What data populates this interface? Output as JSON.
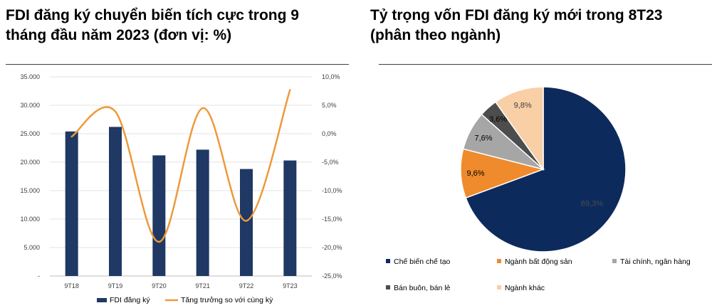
{
  "left": {
    "title_line1": "FDI đăng ký chuyển biến tích cực trong 9",
    "title_line2": "tháng đầu năm 2023 (đơn vị: %)"
  },
  "right": {
    "title_line1": "Tỷ trọng vốn FDI đăng ký mới trong 8T23",
    "title_line2": "(phân theo ngành)"
  },
  "chart_data": [
    {
      "type": "bar",
      "categories": [
        "9T18",
        "9T19",
        "9T20",
        "9T21",
        "9T22",
        "9T23"
      ],
      "series": [
        {
          "name": "FDI đăng ký",
          "type": "bar",
          "axis": "left",
          "color": "#1f3864",
          "values": [
            25400,
            26200,
            21200,
            22200,
            18800,
            20300
          ]
        },
        {
          "name": "Tăng trưởng so với cùng kỳ",
          "type": "line",
          "axis": "right",
          "color": "#ed9a3b",
          "values": [
            -0.5,
            3.9,
            -19.0,
            4.5,
            -15.3,
            7.7
          ]
        }
      ],
      "left_ticks": [
        "35.000",
        "30.000",
        "25.000",
        "20.000",
        "15.000",
        "10.000",
        "5.000",
        "-"
      ],
      "right_ticks": [
        "10,0%",
        "5,0%",
        "0,0%",
        "-5,0%",
        "-10,0%",
        "-15,0%",
        "-20,0%",
        "-25,0%"
      ],
      "ylim_left": [
        0,
        35000
      ],
      "ylim_right": [
        -25,
        10
      ],
      "grid": true,
      "legend": "bottom"
    },
    {
      "type": "pie",
      "labels": [
        "Chế biến chế tạo",
        "Ngành bất động sản",
        "Tài chính, ngân hàng",
        "Bán buôn, bán lẻ",
        "Ngành khác"
      ],
      "values": [
        69.3,
        9.6,
        7.6,
        3.6,
        9.8
      ],
      "value_labels": [
        "69,3%",
        "9,6%",
        "7,6%",
        "3,6%",
        "9,8%"
      ],
      "colors": [
        "#0d2a5c",
        "#ef8b2c",
        "#a6a6a6",
        "#4d4d4d",
        "#f9cfa6"
      ],
      "label_colors": [
        "#4d4d4d",
        "#000000",
        "#000000",
        "#000000",
        "#404040"
      ],
      "legend": "bottom"
    }
  ]
}
